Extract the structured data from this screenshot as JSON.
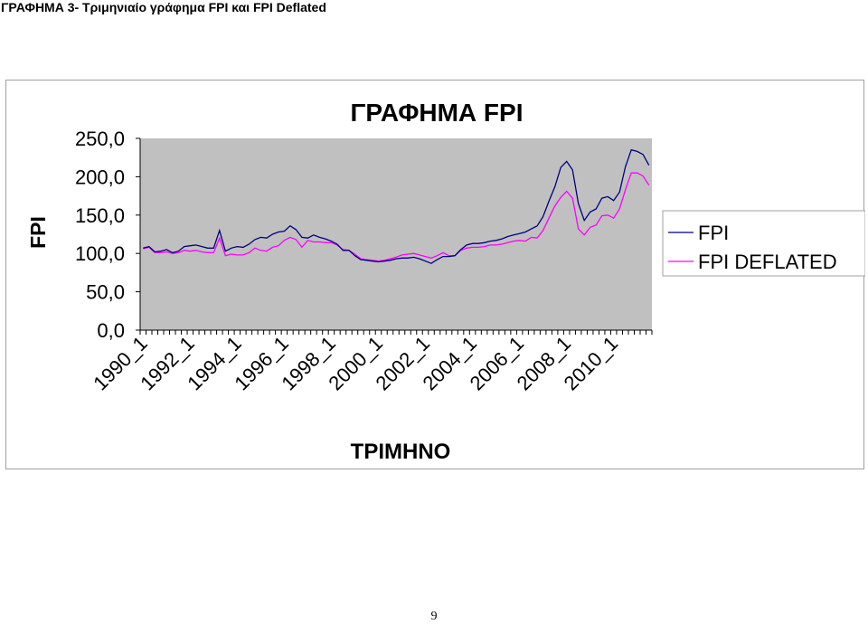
{
  "document": {
    "heading": "ΓΡΑΦΗΜΑ 3- Τριμηνιαίο γράφημα FPI και FPI Deflated",
    "page_number": "9"
  },
  "colors": {
    "plot_background": "#c0c0c0",
    "fpi": "#000080",
    "fpi_deflated": "#ff00ff"
  },
  "chart_data": {
    "type": "line",
    "title": "ΓΡΑΦΗΜΑ FPI",
    "xlabel": "ΤΡΙΜΗΝΟ",
    "ylabel": "FPI",
    "ylim": [
      0,
      250
    ],
    "yticks": [
      "0,0",
      "50,0",
      "100,0",
      "150,0",
      "200,0",
      "250,0"
    ],
    "xtick_labels": [
      "1990_1",
      "1992_1",
      "1994_1",
      "1996_1",
      "1998_1",
      "2000_1",
      "2002_1",
      "2004_1",
      "2006_1",
      "2008_1",
      "2010_1"
    ],
    "grid": false,
    "legend_position": "right",
    "series": [
      {
        "name": "FPI",
        "values": [
          107,
          109,
          102,
          103,
          105,
          101,
          103,
          109,
          110,
          111,
          109,
          107,
          107,
          130,
          103,
          107,
          109,
          108,
          112,
          118,
          121,
          120,
          125,
          128,
          129,
          136,
          131,
          121,
          120,
          124,
          121,
          119,
          116,
          112,
          104,
          104,
          97,
          92,
          91,
          90,
          89,
          90,
          91,
          93,
          94,
          94,
          95,
          93,
          90,
          87,
          92,
          96,
          96,
          97,
          105,
          111,
          113,
          113,
          114,
          116,
          117,
          119,
          122,
          124,
          126,
          128,
          132,
          136,
          148,
          168,
          187,
          212,
          220,
          209,
          165,
          143,
          154,
          158,
          172,
          174,
          169,
          180,
          213,
          235,
          233,
          229,
          215
        ],
        "color": "#000080"
      },
      {
        "name": "FPI DEFLATED",
        "values": [
          106,
          108,
          101,
          101,
          102,
          100,
          101,
          104,
          103,
          104,
          102,
          101,
          101,
          120,
          97,
          99,
          98,
          98,
          101,
          107,
          104,
          103,
          108,
          110,
          117,
          121,
          118,
          108,
          117,
          115,
          115,
          114,
          114,
          111,
          105,
          104,
          99,
          93,
          92,
          91,
          90,
          91,
          93,
          95,
          98,
          99,
          100,
          98,
          96,
          94,
          97,
          101,
          97,
          97,
          104,
          107,
          108,
          108,
          109,
          111,
          111,
          112,
          114,
          116,
          117,
          116,
          121,
          120,
          130,
          146,
          162,
          173,
          181,
          172,
          132,
          124,
          134,
          137,
          149,
          150,
          146,
          158,
          183,
          205,
          205,
          201,
          189
        ],
        "color": "#ff00ff"
      }
    ]
  }
}
